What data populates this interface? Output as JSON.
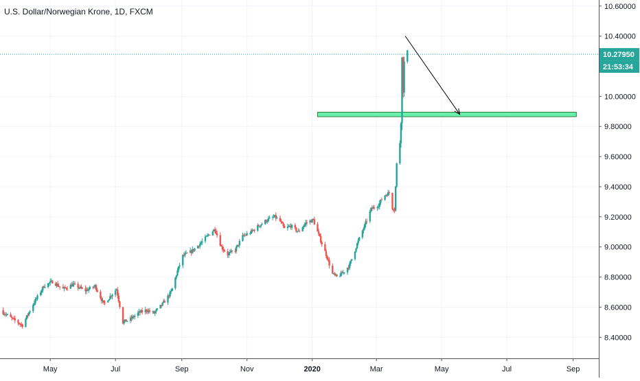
{
  "chart_title": "U.S. Dollar/Norwegian Krone, 1D, FXCM",
  "price_label": "10.27950",
  "countdown_label": "21:53:34",
  "colors": {
    "up": "#26a69a",
    "down": "#ef5350",
    "grid": "#f0f3fa",
    "axis_text": "#131722",
    "price_line": "#26a69a",
    "zone_fill": "#69f0ae",
    "zone_stroke": "#2e7d32",
    "arrow": "#000000"
  },
  "chart_data": {
    "type": "candlestick",
    "title": "U.S. Dollar/Norwegian Krone, 1D, FXCM",
    "x_tick_labels": [
      "May",
      "Jul",
      "Sep",
      "Nov",
      "2020",
      "Mar",
      "May",
      "Jul",
      "Sep"
    ],
    "y_tick_labels": [
      "8.40000",
      "8.60000",
      "8.80000",
      "9.00000",
      "9.20000",
      "9.40000",
      "9.60000",
      "9.80000",
      "10.00000",
      "10.40000",
      "10.60000"
    ],
    "ylim": [
      8.26,
      10.64
    ],
    "last_price": 10.2795,
    "grid": true,
    "price_path": [
      [
        "2019-03-15",
        8.58
      ],
      [
        "2019-03-27",
        8.52
      ],
      [
        "2019-04-05",
        8.48
      ],
      [
        "2019-04-15",
        8.62
      ],
      [
        "2019-04-25",
        8.74
      ],
      [
        "2019-05-03",
        8.77
      ],
      [
        "2019-05-13",
        8.72
      ],
      [
        "2019-05-22",
        8.75
      ],
      [
        "2019-06-03",
        8.71
      ],
      [
        "2019-06-12",
        8.74
      ],
      [
        "2019-06-20",
        8.62
      ],
      [
        "2019-06-27",
        8.68
      ],
      [
        "2019-07-02",
        8.72
      ],
      [
        "2019-07-08",
        8.5
      ],
      [
        "2019-07-15",
        8.52
      ],
      [
        "2019-07-22",
        8.56
      ],
      [
        "2019-07-30",
        8.58
      ],
      [
        "2019-08-06",
        8.56
      ],
      [
        "2019-08-14",
        8.62
      ],
      [
        "2019-08-22",
        8.7
      ],
      [
        "2019-08-28",
        8.84
      ],
      [
        "2019-09-02",
        8.94
      ],
      [
        "2019-09-10",
        8.97
      ],
      [
        "2019-09-18",
        9.02
      ],
      [
        "2019-09-26",
        9.08
      ],
      [
        "2019-10-02",
        9.12
      ],
      [
        "2019-10-08",
        9.0
      ],
      [
        "2019-10-14",
        8.95
      ],
      [
        "2019-10-21",
        8.98
      ],
      [
        "2019-10-28",
        9.07
      ],
      [
        "2019-11-05",
        9.1
      ],
      [
        "2019-11-12",
        9.14
      ],
      [
        "2019-11-20",
        9.18
      ],
      [
        "2019-11-27",
        9.2
      ],
      [
        "2019-12-02",
        9.17
      ],
      [
        "2019-12-06",
        9.12
      ],
      [
        "2019-12-12",
        9.14
      ],
      [
        "2019-12-19",
        9.1
      ],
      [
        "2019-12-26",
        9.16
      ],
      [
        "2020-01-02",
        9.18
      ],
      [
        "2020-01-08",
        9.06
      ],
      [
        "2020-01-14",
        8.95
      ],
      [
        "2020-01-20",
        8.82
      ],
      [
        "2020-01-24",
        8.8
      ],
      [
        "2020-01-30",
        8.83
      ],
      [
        "2020-02-05",
        8.88
      ],
      [
        "2020-02-12",
        9.02
      ],
      [
        "2020-02-19",
        9.14
      ],
      [
        "2020-02-25",
        9.25
      ],
      [
        "2020-03-03",
        9.28
      ],
      [
        "2020-03-08",
        9.34
      ],
      [
        "2020-03-13",
        9.36
      ],
      [
        "2020-03-16",
        9.26
      ],
      [
        "2020-03-18",
        9.25
      ],
      [
        "2020-03-20",
        9.55
      ],
      [
        "2020-03-23",
        9.7
      ],
      [
        "2020-03-24",
        9.85
      ],
      [
        "2020-03-25",
        10.25
      ],
      [
        "2020-03-26",
        10.05
      ],
      [
        "2020-03-27",
        10.22
      ],
      [
        "2020-03-30",
        10.2795
      ]
    ],
    "annotations": [
      {
        "type": "zone",
        "x_start": "2020-01-06",
        "x_end": "2020-09-04",
        "y_low": 9.865,
        "y_high": 9.895
      },
      {
        "type": "arrow",
        "from": [
          "2020-03-28",
          10.4
        ],
        "to": [
          "2020-05-18",
          9.88
        ]
      }
    ]
  }
}
